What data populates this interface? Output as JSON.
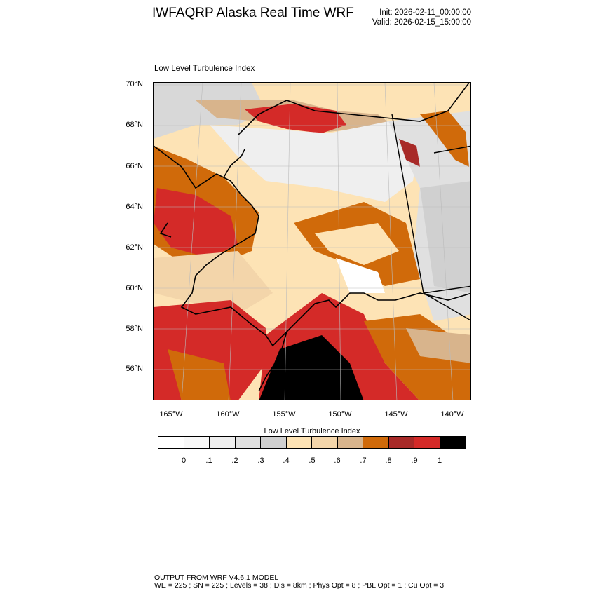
{
  "header": {
    "title": "IWFAQRP Alaska Real Time WRF",
    "init": "Init: 2026-02-11_00:00:00",
    "valid": "Valid: 2026-02-15_15:00:00"
  },
  "plot": {
    "title": "Low Level Turbulence Index",
    "lat_labels": [
      "70°N",
      "68°N",
      "66°N",
      "64°N",
      "62°N",
      "60°N",
      "58°N",
      "56°N"
    ],
    "lon_labels": [
      "165°W",
      "160°W",
      "155°W",
      "150°W",
      "145°W",
      "140°W"
    ]
  },
  "colorbar": {
    "title": "Low Level Turbulence Index",
    "colors": [
      "#ffffff",
      "#f8f8f8",
      "#eeeeee",
      "#e0e0e0",
      "#d0d0d0",
      "#fde3b5",
      "#f3d5aa",
      "#d8b48c",
      "#d06a0a",
      "#a82a28",
      "#d42a28",
      "#000000"
    ],
    "labels": [
      "0",
      ".1",
      ".2",
      ".3",
      ".4",
      ".5",
      ".6",
      ".7",
      ".8",
      ".9",
      "1"
    ]
  },
  "footer": {
    "line1": "OUTPUT FROM WRF V4.6.1 MODEL",
    "line2": "WE = 225 ; SN = 225 ; Levels = 38 ; Dis = 8km ; Phys Opt = 8 ; PBL Opt = 1 ; Cu Opt = 3"
  }
}
